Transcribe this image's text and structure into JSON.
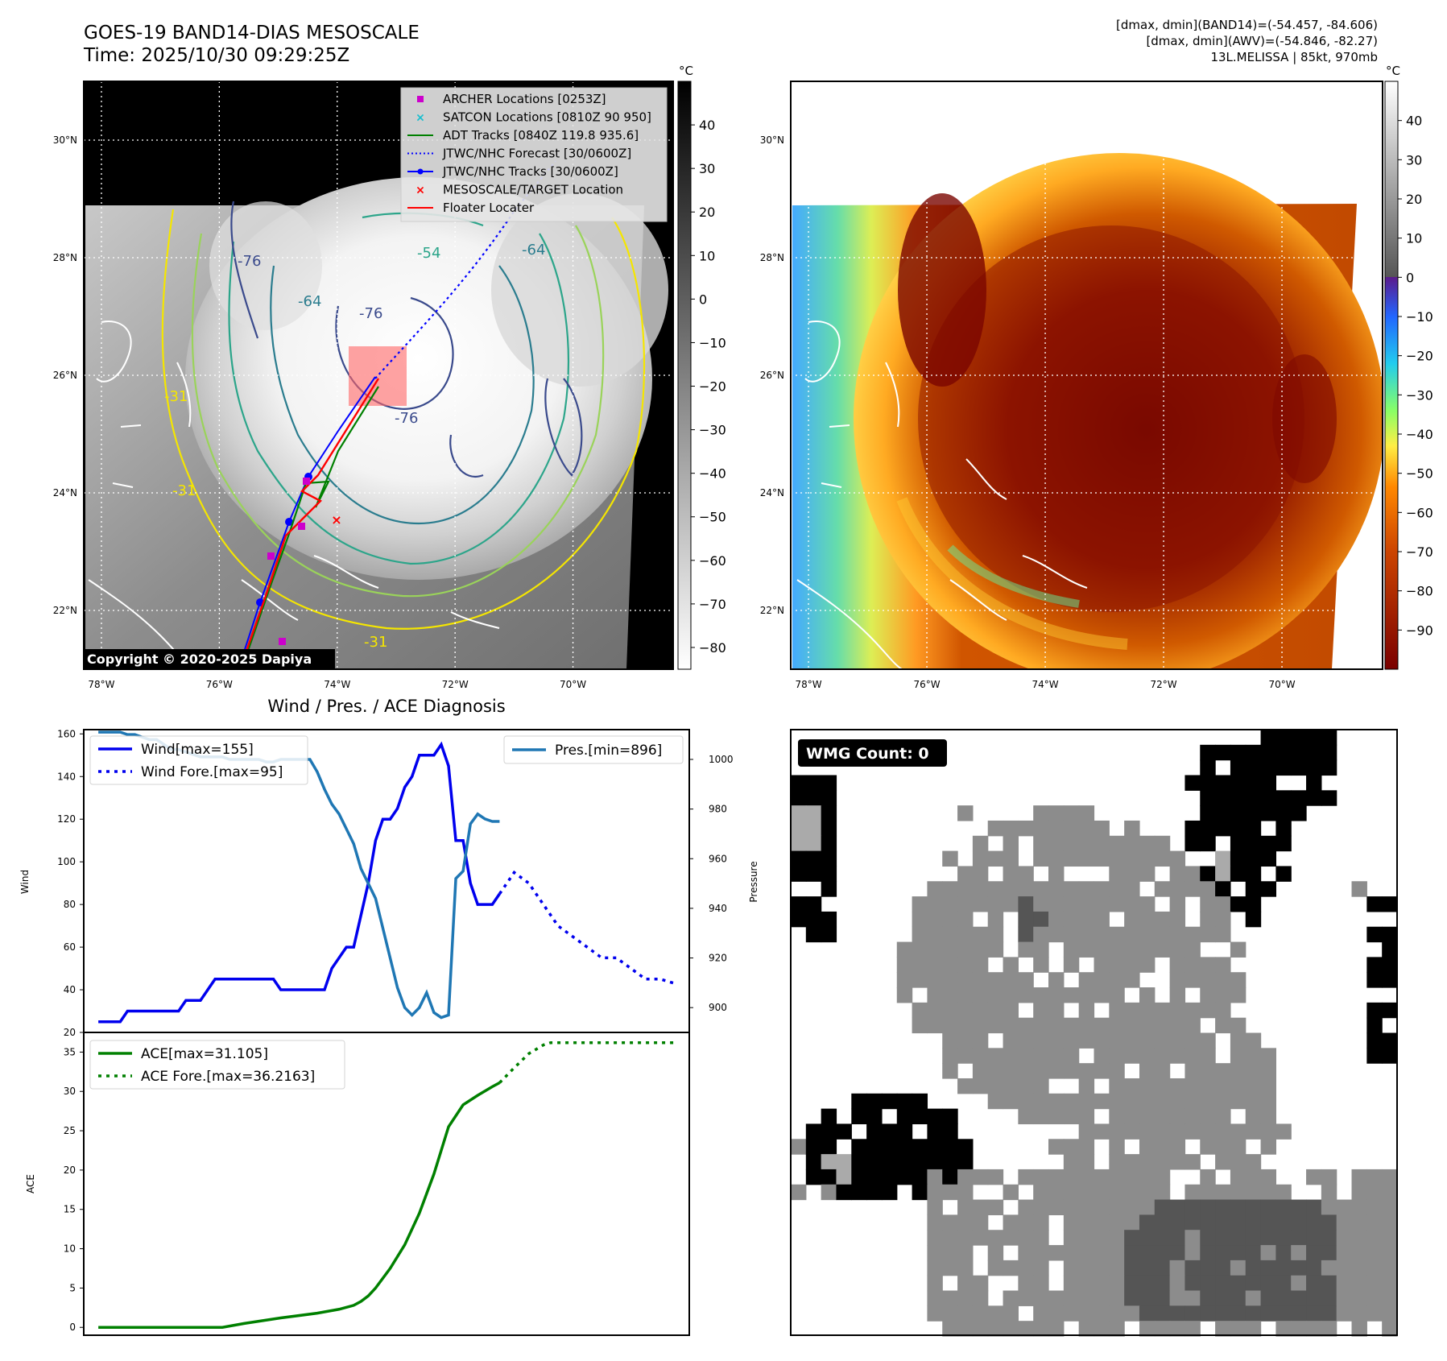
{
  "header": {
    "title": "GOES-19 BAND14-DIAS MESOSCALE",
    "time": "Time: 2025/10/30 09:29:25Z",
    "dmax_band14": "[dmax, dmin](BAND14)=(-54.457, -84.606)",
    "dmax_awv": "[dmax, dmin](AWV)=(-54.846, -82.27)",
    "storm": "13L.MELISSA | 85kt, 970mb"
  },
  "map_axes": {
    "lon_labels": [
      "78°W",
      "76°W",
      "74°W",
      "72°W",
      "70°W"
    ],
    "lat_labels": [
      "30°N",
      "28°N",
      "26°N",
      "24°N",
      "22°N"
    ],
    "lon_values": [
      -78,
      -76,
      -74,
      -72,
      -70
    ],
    "lat_values": [
      30,
      28,
      26,
      24,
      22
    ],
    "lon_range": [
      -78.3,
      -68.3
    ],
    "lat_range": [
      21.0,
      31.0
    ]
  },
  "ir_map": {
    "copyright": "Copyright © 2020-2025 Dapiya",
    "contour_labels": [
      "-76",
      "-76",
      "-54",
      "-64",
      "-64",
      "-76",
      "-31",
      "-31",
      "-31"
    ],
    "legend": [
      {
        "label": "ARCHER Locations [0253Z]",
        "marker": "square",
        "color": "#cc00cc"
      },
      {
        "label": "SATCON Locations [0810Z 90 950]",
        "marker": "x",
        "color": "#17becf"
      },
      {
        "label": "ADT Tracks [0840Z 119.8 935.6]",
        "marker": "line",
        "color": "#008000"
      },
      {
        "label": "JTWC/NHC Forecast [30/0600Z]",
        "marker": "dotted",
        "color": "#0000ff"
      },
      {
        "label": "JTWC/NHC Tracks [30/0600Z]",
        "marker": "line-dot",
        "color": "#0000ff"
      },
      {
        "label": "MESOSCALE/TARGET Location",
        "marker": "x",
        "color": "#ff0000"
      },
      {
        "label": "Floater Locater",
        "marker": "line",
        "color": "#ff0000"
      }
    ],
    "colorbar_unit": "°C",
    "colorbar_ticks": [
      "40",
      "30",
      "20",
      "10",
      "0",
      "−10",
      "−20",
      "−30",
      "−40",
      "−50",
      "−60",
      "−70",
      "−80"
    ],
    "colorbar_values": [
      40,
      30,
      20,
      10,
      0,
      -10,
      -20,
      -30,
      -40,
      -50,
      -60,
      -70,
      -80
    ],
    "colorbar_range": [
      -85,
      50
    ]
  },
  "awv_map": {
    "colorbar_unit": "°C",
    "colorbar_ticks": [
      "40",
      "30",
      "20",
      "10",
      "0",
      "−10",
      "−20",
      "−30",
      "−40",
      "−50",
      "−60",
      "−70",
      "−80",
      "−90"
    ],
    "colorbar_values": [
      40,
      30,
      20,
      10,
      0,
      -10,
      -20,
      -30,
      -40,
      -50,
      -60,
      -70,
      -80,
      -90
    ],
    "colorbar_range": [
      -100,
      50
    ]
  },
  "wmg": {
    "label": "WMG Count: 0",
    "colors": {
      "w": "#ffffff",
      "k": "#000000",
      "g": "#8c8c8c",
      "d": "#555555",
      "l": "#aaaaaa"
    }
  },
  "colors": {
    "wind": "#0000ee",
    "pressure": "#1f77b4",
    "ace": "#008000"
  },
  "chart_data": [
    {
      "type": "line",
      "title": "Wind / Pres. / ACE Diagnosis",
      "xlabel": "",
      "ylabel": "Wind",
      "ylabel_right": "Pressure",
      "ylim": [
        20,
        162
      ],
      "ylim_right": [
        890,
        1012
      ],
      "yticks": [
        20,
        40,
        60,
        80,
        100,
        120,
        140,
        160
      ],
      "yticks_right": [
        900,
        920,
        940,
        960,
        980,
        1000
      ],
      "legend_left": [
        "Wind[max=155]",
        "Wind Fore.[max=95]"
      ],
      "legend_right": [
        "Pres.[min=896]"
      ],
      "series": [
        {
          "name": "Wind[max=155]",
          "style": "solid",
          "x": [
            0,
            1,
            2,
            3,
            4,
            5,
            6,
            7,
            8,
            9,
            10,
            11,
            12,
            13,
            14,
            15,
            16,
            17,
            18,
            19,
            20,
            21,
            22,
            23,
            24,
            25,
            26,
            27,
            28,
            29,
            30,
            31,
            32,
            33,
            34,
            35,
            36,
            37,
            38,
            39,
            40,
            41,
            42,
            43,
            44,
            45,
            46,
            47,
            48,
            49,
            50,
            51,
            52,
            53,
            54,
            55
          ],
          "values": [
            25,
            25,
            25,
            25,
            30,
            30,
            30,
            30,
            30,
            30,
            30,
            30,
            35,
            35,
            35,
            40,
            45,
            45,
            45,
            45,
            45,
            45,
            45,
            45,
            45,
            40,
            40,
            40,
            40,
            40,
            40,
            40,
            50,
            55,
            60,
            60,
            75,
            90,
            110,
            120,
            120,
            125,
            135,
            140,
            150,
            150,
            150,
            155,
            145,
            110,
            110,
            90,
            80,
            80,
            80,
            85
          ]
        },
        {
          "name": "Wind Fore.[max=95]",
          "style": "dotted",
          "x": [
            55,
            57,
            59,
            61,
            63,
            65,
            67,
            69,
            71,
            73,
            75,
            77,
            79
          ],
          "values": [
            85,
            95,
            90,
            80,
            70,
            65,
            60,
            55,
            55,
            50,
            45,
            45,
            43
          ]
        },
        {
          "name": "Pres.[min=896]",
          "style": "solid",
          "axis": "right",
          "x": [
            0,
            1,
            2,
            3,
            4,
            5,
            6,
            7,
            8,
            9,
            10,
            11,
            12,
            13,
            14,
            15,
            16,
            17,
            18,
            19,
            20,
            21,
            22,
            23,
            24,
            25,
            26,
            27,
            28,
            29,
            30,
            31,
            32,
            33,
            34,
            35,
            36,
            37,
            38,
            39,
            40,
            41,
            42,
            43,
            44,
            45,
            46,
            47,
            48,
            49,
            50,
            51,
            52,
            53,
            54,
            55
          ],
          "values": [
            1011,
            1011,
            1011,
            1011,
            1010,
            1010,
            1009,
            1008,
            1008,
            1006,
            1004,
            1004,
            1003,
            1002,
            1001,
            1001,
            1001,
            1001,
            1000,
            1000,
            1000,
            1000,
            1000,
            999,
            999,
            1000,
            1000,
            1000,
            1000,
            1000,
            995,
            988,
            982,
            978,
            972,
            966,
            956,
            950,
            944,
            932,
            920,
            908,
            900,
            897,
            900,
            906,
            898,
            896,
            897,
            952,
            955,
            974,
            978,
            976,
            975,
            975
          ]
        }
      ]
    },
    {
      "type": "line",
      "ylabel": "ACE",
      "ylim": [
        -1,
        37.5
      ],
      "yticks": [
        0,
        5,
        10,
        15,
        20,
        25,
        30,
        35
      ],
      "legend": [
        "ACE[max=31.105]",
        "ACE Fore.[max=36.2163]"
      ],
      "series": [
        {
          "name": "ACE[max=31.105]",
          "style": "solid",
          "x": [
            0,
            10,
            17,
            20,
            25,
            30,
            33,
            35,
            36,
            37,
            38,
            40,
            42,
            44,
            46,
            48,
            50,
            52,
            54,
            55
          ],
          "values": [
            0,
            0,
            0,
            0.5,
            1.2,
            1.8,
            2.3,
            2.8,
            3.3,
            4.0,
            5.0,
            7.5,
            10.5,
            14.5,
            19.5,
            25.5,
            28.3,
            29.5,
            30.6,
            31.1
          ]
        },
        {
          "name": "ACE Fore.[max=36.2163]",
          "style": "dotted",
          "x": [
            55,
            57,
            59,
            61,
            62,
            64,
            67,
            70,
            73,
            76,
            79
          ],
          "values": [
            31.1,
            33.0,
            34.8,
            35.9,
            36.2,
            36.2,
            36.2,
            36.2,
            36.2,
            36.2,
            36.2
          ]
        }
      ]
    }
  ]
}
